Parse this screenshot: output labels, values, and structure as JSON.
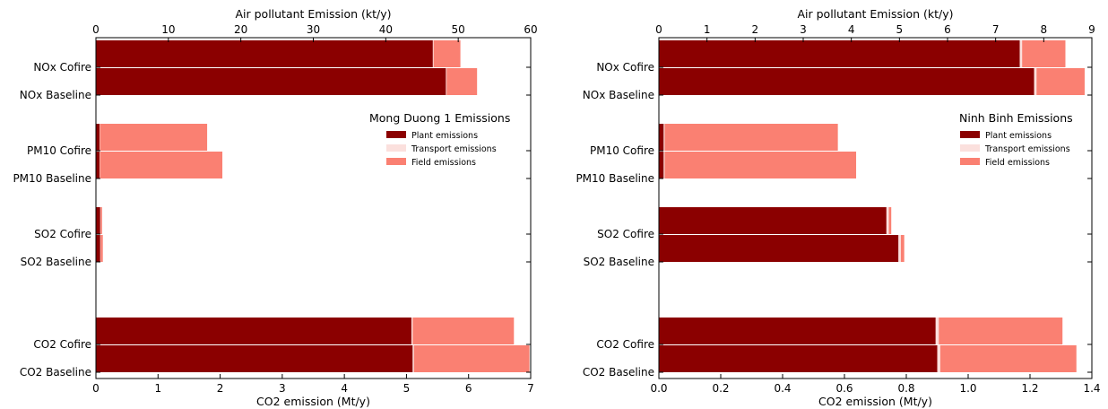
{
  "colors": {
    "plant": "#8b0000",
    "transport": "#fbe0dd",
    "field": "#fa8072"
  },
  "chart_data": [
    {
      "type": "bar",
      "orientation": "horizontal",
      "stacked": true,
      "legend_title": "Mong Duong 1 Emissions",
      "legend_entries": [
        "Plant emissions",
        "Transport emissions",
        "Field emissions"
      ],
      "legend_placement": "right",
      "top_axis": {
        "label": "Air pollutant Emission (kt/y)",
        "range": [
          0,
          60
        ],
        "ticks": [
          "0",
          "10",
          "20",
          "30",
          "40",
          "50",
          "60"
        ]
      },
      "bottom_axis": {
        "label": "CO2 emission (Mt/y)",
        "range": [
          0,
          7
        ],
        "ticks": [
          "0",
          "1",
          "2",
          "3",
          "4",
          "5",
          "6",
          "7"
        ]
      },
      "categories": [
        "NOx Cofire",
        "NOx Baseline",
        "PM10 Cofire",
        "PM10 Baseline",
        "SO2 Cofire",
        "SO2 Baseline",
        "CO2 Cofire",
        "CO2 Baseline"
      ],
      "axis_for_category": [
        "top",
        "top",
        "top",
        "top",
        "top",
        "top",
        "bottom",
        "bottom"
      ],
      "series": [
        {
          "name": "Plant emissions",
          "values": [
            46.5,
            48.3,
            0.5,
            0.5,
            0.6,
            0.6,
            5.08,
            5.1
          ]
        },
        {
          "name": "Transport emissions",
          "values": [
            0.1,
            0.1,
            0.05,
            0.05,
            0.05,
            0.05,
            0.02,
            0.02
          ]
        },
        {
          "name": "Field emissions",
          "values": [
            3.7,
            4.2,
            14.8,
            16.9,
            0.2,
            0.3,
            1.63,
            1.86
          ]
        }
      ]
    },
    {
      "type": "bar",
      "orientation": "horizontal",
      "stacked": true,
      "legend_title": "Ninh Binh Emissions",
      "legend_entries": [
        "Plant emissions",
        "Transport emissions",
        "Field emissions"
      ],
      "legend_placement": "right",
      "top_axis": {
        "label": "Air pollutant Emission (kt/y)",
        "range": [
          0,
          9
        ],
        "ticks": [
          "0",
          "1",
          "2",
          "3",
          "4",
          "5",
          "6",
          "7",
          "8",
          "9"
        ]
      },
      "bottom_axis": {
        "label": "CO2 emission (Mt/y)",
        "range": [
          0,
          1.4
        ],
        "ticks": [
          "0.0",
          "0.2",
          "0.4",
          "0.6",
          "0.8",
          "1.0",
          "1.2",
          "1.4"
        ]
      },
      "categories": [
        "NOx Cofire",
        "NOx Baseline",
        "PM10 Cofire",
        "PM10 Baseline",
        "SO2 Cofire",
        "SO2 Baseline",
        "CO2 Cofire",
        "CO2 Baseline"
      ],
      "axis_for_category": [
        "top",
        "top",
        "top",
        "top",
        "top",
        "top",
        "bottom",
        "bottom"
      ],
      "series": [
        {
          "name": "Plant emissions",
          "values": [
            7.5,
            7.8,
            0.1,
            0.1,
            4.73,
            4.98,
            0.895,
            0.9
          ]
        },
        {
          "name": "Transport emissions",
          "values": [
            0.05,
            0.05,
            0.02,
            0.02,
            0.05,
            0.05,
            0.01,
            0.01
          ]
        },
        {
          "name": "Field emissions",
          "values": [
            0.9,
            1.0,
            3.6,
            3.98,
            0.05,
            0.07,
            0.4,
            0.44
          ]
        }
      ]
    }
  ]
}
